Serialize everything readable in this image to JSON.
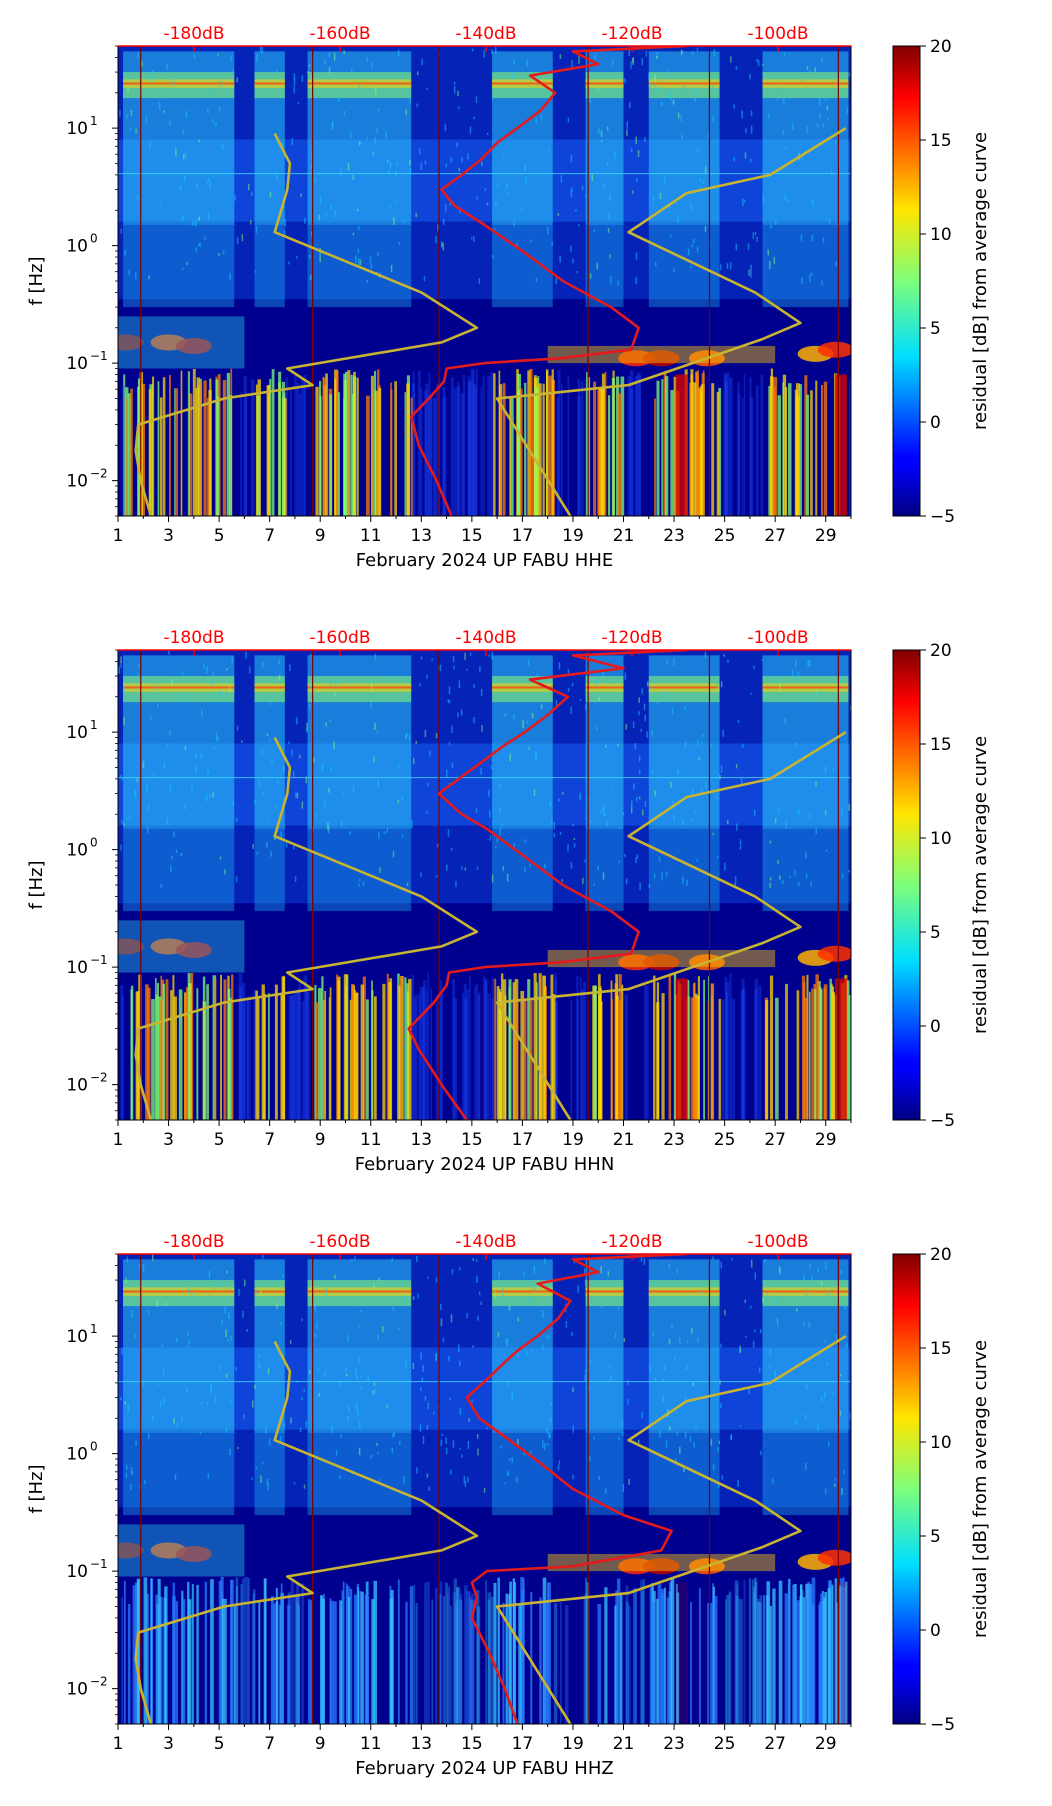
{
  "chart_data": [
    {
      "type": "heatmap",
      "panel": "HHE",
      "title": "",
      "xlabel": "February 2024 UP FABU  HHE",
      "ylabel": "f [Hz]",
      "x_range": [
        1,
        30
      ],
      "y_range": [
        0.005,
        50
      ],
      "y_scale": "log",
      "x_ticks": [
        "1",
        "3",
        "5",
        "7",
        "9",
        "11",
        "13",
        "15",
        "17",
        "19",
        "21",
        "23",
        "25",
        "27",
        "29"
      ],
      "y_ticks": [
        {
          "value": 10,
          "base": "10",
          "exp": "1"
        },
        {
          "value": 1,
          "base": "10",
          "exp": "0"
        },
        {
          "value": 0.1,
          "base": "10",
          "exp": "−1"
        },
        {
          "value": 0.01,
          "base": "10",
          "exp": "−2"
        }
      ],
      "top_ticks": [
        "-180dB",
        "-160dB",
        "-140dB",
        "-120dB",
        "-100dB"
      ],
      "colorbar": {
        "label": "residual [dB] from average curve",
        "min": -5,
        "max": 20,
        "ticks": [
          "20",
          "15",
          "10",
          "5",
          "0",
          "−5"
        ]
      },
      "vertical_lines_day": [
        1.9,
        8.7,
        13.7,
        19.6,
        24.4,
        29.5
      ],
      "series": [
        {
          "name": "mean PSD (red)",
          "color": "#e41a1c",
          "points": [
            [
              14.2,
              0.005
            ],
            [
              13.6,
              0.01
            ],
            [
              12.9,
              0.02
            ],
            [
              12.6,
              0.035
            ],
            [
              13.3,
              0.05
            ],
            [
              13.9,
              0.07
            ],
            [
              14.0,
              0.09
            ],
            [
              15.5,
              0.1
            ],
            [
              18.5,
              0.11
            ],
            [
              21.3,
              0.13
            ],
            [
              21.6,
              0.2
            ],
            [
              20.5,
              0.3
            ],
            [
              18.6,
              0.5
            ],
            [
              17.0,
              0.9
            ],
            [
              15.5,
              1.5
            ],
            [
              14.3,
              2.2
            ],
            [
              13.8,
              3.0
            ],
            [
              14.6,
              4.0
            ],
            [
              15.4,
              5.5
            ],
            [
              16.0,
              7.5
            ],
            [
              16.8,
              10
            ],
            [
              17.7,
              14
            ],
            [
              18.3,
              20
            ],
            [
              17.3,
              28
            ],
            [
              20.0,
              35
            ],
            [
              19.0,
              45
            ],
            [
              23.5,
              50
            ]
          ]
        },
        {
          "name": "NLNM (yellow)",
          "color": "#c8b430",
          "points": [
            [
              2.3,
              0.005
            ],
            [
              1.9,
              0.01
            ],
            [
              1.7,
              0.018
            ],
            [
              1.8,
              0.03
            ],
            [
              5.2,
              0.05
            ],
            [
              8.7,
              0.065
            ],
            [
              7.7,
              0.09
            ],
            [
              13.8,
              0.15
            ],
            [
              15.2,
              0.2
            ],
            [
              13.0,
              0.4
            ],
            [
              7.2,
              1.3
            ],
            [
              7.7,
              3.0
            ],
            [
              7.8,
              5.0
            ],
            [
              7.2,
              9.0
            ]
          ]
        },
        {
          "name": "NHNM (yellow)",
          "color": "#c8b430",
          "points": [
            [
              18.9,
              0.005
            ],
            [
              16.0,
              0.05
            ],
            [
              21.2,
              0.065
            ],
            [
              26.5,
              0.16
            ],
            [
              28.0,
              0.22
            ],
            [
              26.2,
              0.4
            ],
            [
              21.2,
              1.3
            ],
            [
              23.5,
              2.8
            ],
            [
              26.8,
              4.0
            ],
            [
              29.8,
              10
            ]
          ]
        }
      ]
    },
    {
      "type": "heatmap",
      "panel": "HHN",
      "title": "",
      "xlabel": "February 2024 UP FABU  HHN",
      "ylabel": "f [Hz]",
      "x_range": [
        1,
        30
      ],
      "y_range": [
        0.005,
        50
      ],
      "y_scale": "log",
      "x_ticks": [
        "1",
        "3",
        "5",
        "7",
        "9",
        "11",
        "13",
        "15",
        "17",
        "19",
        "21",
        "23",
        "25",
        "27",
        "29"
      ],
      "y_ticks": [
        {
          "value": 10,
          "base": "10",
          "exp": "1"
        },
        {
          "value": 1,
          "base": "10",
          "exp": "0"
        },
        {
          "value": 0.1,
          "base": "10",
          "exp": "−1"
        },
        {
          "value": 0.01,
          "base": "10",
          "exp": "−2"
        }
      ],
      "top_ticks": [
        "-180dB",
        "-160dB",
        "-140dB",
        "-120dB",
        "-100dB"
      ],
      "colorbar": {
        "label": "residual [dB] from average curve",
        "min": -5,
        "max": 20,
        "ticks": [
          "20",
          "15",
          "10",
          "5",
          "0",
          "−5"
        ]
      },
      "vertical_lines_day": [
        1.9,
        8.7,
        13.7,
        19.6,
        24.4,
        29.5
      ],
      "series": [
        {
          "name": "mean PSD (red)",
          "color": "#e41a1c",
          "points": [
            [
              14.8,
              0.005
            ],
            [
              13.8,
              0.01
            ],
            [
              12.9,
              0.02
            ],
            [
              12.5,
              0.03
            ],
            [
              13.5,
              0.05
            ],
            [
              14.0,
              0.07
            ],
            [
              14.1,
              0.09
            ],
            [
              15.5,
              0.1
            ],
            [
              18.5,
              0.11
            ],
            [
              21.3,
              0.13
            ],
            [
              21.6,
              0.2
            ],
            [
              20.5,
              0.3
            ],
            [
              18.6,
              0.5
            ],
            [
              17.0,
              0.9
            ],
            [
              15.6,
              1.5
            ],
            [
              14.6,
              2.0
            ],
            [
              13.7,
              3.0
            ],
            [
              14.8,
              4.5
            ],
            [
              15.6,
              6.0
            ],
            [
              16.2,
              7.5
            ],
            [
              17.1,
              10
            ],
            [
              18.0,
              14
            ],
            [
              18.8,
              20
            ],
            [
              17.3,
              28
            ],
            [
              21.0,
              35
            ],
            [
              19.0,
              45
            ],
            [
              23.5,
              50
            ]
          ]
        },
        {
          "name": "NLNM (yellow)",
          "color": "#c8b430",
          "points": [
            [
              2.3,
              0.005
            ],
            [
              1.9,
              0.01
            ],
            [
              1.7,
              0.018
            ],
            [
              1.8,
              0.03
            ],
            [
              5.2,
              0.05
            ],
            [
              8.7,
              0.065
            ],
            [
              7.7,
              0.09
            ],
            [
              13.8,
              0.15
            ],
            [
              15.2,
              0.2
            ],
            [
              13.0,
              0.4
            ],
            [
              7.2,
              1.3
            ],
            [
              7.7,
              3.0
            ],
            [
              7.8,
              5.0
            ],
            [
              7.2,
              9.0
            ]
          ]
        },
        {
          "name": "NHNM (yellow)",
          "color": "#c8b430",
          "points": [
            [
              18.9,
              0.005
            ],
            [
              16.0,
              0.05
            ],
            [
              21.2,
              0.065
            ],
            [
              26.5,
              0.16
            ],
            [
              28.0,
              0.22
            ],
            [
              26.2,
              0.4
            ],
            [
              21.2,
              1.3
            ],
            [
              23.5,
              2.8
            ],
            [
              26.8,
              4.0
            ],
            [
              29.8,
              10
            ]
          ]
        }
      ]
    },
    {
      "type": "heatmap",
      "panel": "HHZ",
      "title": "",
      "xlabel": "February 2024 UP FABU  HHZ",
      "ylabel": "f [Hz]",
      "x_range": [
        1,
        30
      ],
      "y_range": [
        0.005,
        50
      ],
      "y_scale": "log",
      "x_ticks": [
        "1",
        "3",
        "5",
        "7",
        "9",
        "11",
        "13",
        "15",
        "17",
        "19",
        "21",
        "23",
        "25",
        "27",
        "29"
      ],
      "y_ticks": [
        {
          "value": 10,
          "base": "10",
          "exp": "1"
        },
        {
          "value": 1,
          "base": "10",
          "exp": "0"
        },
        {
          "value": 0.1,
          "base": "10",
          "exp": "−1"
        },
        {
          "value": 0.01,
          "base": "10",
          "exp": "−2"
        }
      ],
      "top_ticks": [
        "-180dB",
        "-160dB",
        "-140dB",
        "-120dB",
        "-100dB"
      ],
      "colorbar": {
        "label": "residual [dB] from average curve",
        "min": -5,
        "max": 20,
        "ticks": [
          "20",
          "15",
          "10",
          "5",
          "0",
          "−5"
        ]
      },
      "vertical_lines_day": [
        1.9,
        8.7,
        13.7,
        19.6,
        24.4,
        29.5
      ],
      "series": [
        {
          "name": "mean PSD (red)",
          "color": "#e41a1c",
          "points": [
            [
              16.8,
              0.005
            ],
            [
              16.3,
              0.01
            ],
            [
              15.7,
              0.02
            ],
            [
              15.0,
              0.04
            ],
            [
              15.2,
              0.06
            ],
            [
              15.0,
              0.08
            ],
            [
              15.6,
              0.1
            ],
            [
              19.0,
              0.11
            ],
            [
              22.5,
              0.15
            ],
            [
              22.9,
              0.22
            ],
            [
              21.0,
              0.3
            ],
            [
              19.0,
              0.5
            ],
            [
              17.5,
              0.9
            ],
            [
              16.1,
              1.5
            ],
            [
              15.3,
              2.0
            ],
            [
              14.8,
              3.0
            ],
            [
              15.7,
              4.5
            ],
            [
              16.3,
              6.0
            ],
            [
              16.8,
              7.5
            ],
            [
              17.6,
              10
            ],
            [
              18.4,
              14
            ],
            [
              18.9,
              20
            ],
            [
              17.6,
              28
            ],
            [
              20.0,
              35
            ],
            [
              19.0,
              45
            ],
            [
              23.5,
              50
            ]
          ]
        },
        {
          "name": "NLNM (yellow)",
          "color": "#c8b430",
          "points": [
            [
              2.3,
              0.005
            ],
            [
              1.9,
              0.01
            ],
            [
              1.7,
              0.018
            ],
            [
              1.8,
              0.03
            ],
            [
              5.2,
              0.05
            ],
            [
              8.7,
              0.065
            ],
            [
              7.7,
              0.09
            ],
            [
              13.8,
              0.15
            ],
            [
              15.2,
              0.2
            ],
            [
              13.0,
              0.4
            ],
            [
              7.2,
              1.3
            ],
            [
              7.7,
              3.0
            ],
            [
              7.8,
              5.0
            ],
            [
              7.2,
              9.0
            ]
          ]
        },
        {
          "name": "NHNM (yellow)",
          "color": "#c8b430",
          "points": [
            [
              18.9,
              0.005
            ],
            [
              16.0,
              0.05
            ],
            [
              21.2,
              0.065
            ],
            [
              26.5,
              0.16
            ],
            [
              28.0,
              0.22
            ],
            [
              26.2,
              0.4
            ],
            [
              21.2,
              1.3
            ],
            [
              23.5,
              2.8
            ],
            [
              26.8,
              4.0
            ],
            [
              29.8,
              10
            ]
          ]
        }
      ]
    }
  ]
}
